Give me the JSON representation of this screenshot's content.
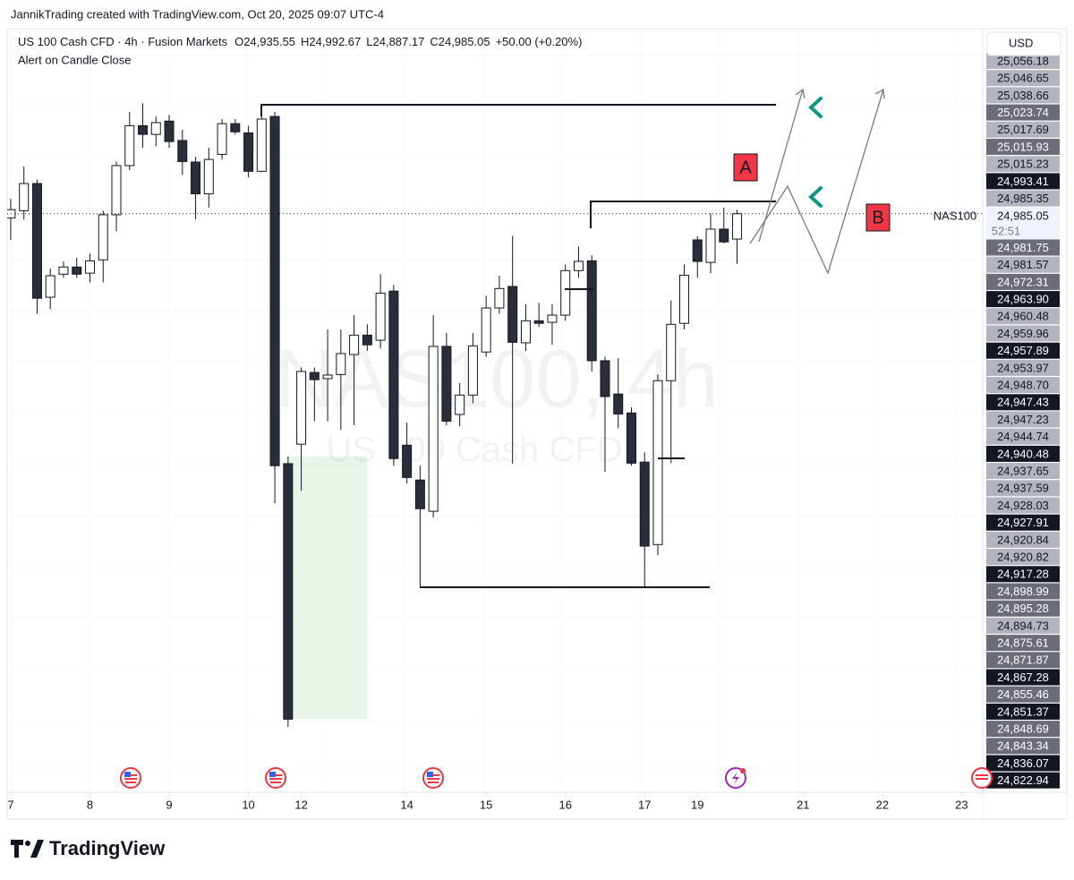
{
  "header": {
    "attribution": "JannikTrading created with TradingView.com, Oct 20, 2025 09:07 UTC-4",
    "symbol": "US 100 Cash CFD · 4h · Fusion Markets",
    "ohlc": [
      "O24,935.55",
      "H24,992.67",
      "L24,887.17",
      "C24,985.05",
      "+50.00 (+0.20%)"
    ],
    "alert": "Alert on Candle Close"
  },
  "chart_data": {
    "type": "candlestick",
    "watermark": "NAS100, 4h",
    "watermark_subtitle": "US 100 Cash CFD",
    "currency": "USD",
    "symbol_label": "NAS100",
    "last_price": "24,985.05",
    "countdown": "52:51",
    "annotations": [
      "A",
      "B"
    ],
    "x": [
      0,
      1,
      2,
      3,
      4,
      5,
      6,
      7,
      8,
      9,
      10,
      11,
      12,
      13,
      14,
      15,
      16,
      17,
      18,
      19,
      20,
      21,
      22,
      23,
      24,
      25,
      26,
      27,
      28,
      29,
      30,
      31,
      32,
      33,
      34,
      35,
      36,
      37,
      38,
      39,
      40,
      41,
      42,
      43,
      44,
      45,
      46,
      47,
      48,
      49,
      50,
      51,
      52,
      53,
      54,
      55
    ],
    "open": [
      24977,
      24991,
      25044,
      24822,
      24867,
      24881,
      24869,
      24895,
      24983,
      25079,
      25157,
      25140,
      25166,
      25128,
      25086,
      25024,
      25101,
      25161,
      25143,
      25068,
      25175,
      24497,
      24535,
      24675,
      24663,
      24671,
      24710,
      24748,
      24738,
      24834,
      24533,
      24465,
      24404,
      24726,
      24593,
      24631,
      24715,
      24801,
      24843,
      24733,
      24776,
      24773,
      24787,
      24874,
      24893,
      24698,
      24633,
      24596,
      24500,
      24339,
      24659,
      24771,
      24934,
      24890,
      24955,
      24935.55
    ],
    "high": [
      25014,
      25077,
      25052,
      24878,
      24892,
      24899,
      24907,
      24991,
      25087,
      25184,
      25201,
      25175,
      25178,
      25149,
      25096,
      25114,
      25170,
      25170,
      25157,
      25192,
      25184,
      24511,
      24685,
      24685,
      24759,
      24759,
      24787,
      24769,
      24867,
      24846,
      24577,
      24493,
      24787,
      24752,
      24654,
      24752,
      24825,
      24864,
      24942,
      24808,
      24811,
      24808,
      24886,
      24921,
      24904,
      24706,
      24703,
      24607,
      24519,
      24671,
      24816,
      24886,
      24941,
      24986,
      24997,
      24992.67
    ],
    "low": [
      24934,
      24974,
      24790,
      24799,
      24860,
      24860,
      24851,
      24851,
      24951,
      25070,
      25114,
      25117,
      25114,
      25061,
      24974,
      24997,
      25091,
      25140,
      25056,
      25066,
      24420,
      23983,
      24444,
      24580,
      24580,
      24563,
      24572,
      24717,
      24722,
      24493,
      24458,
      24255,
      24392,
      24572,
      24570,
      24615,
      24706,
      24790,
      24497,
      24717,
      24764,
      24729,
      24776,
      24860,
      24677,
      24481,
      24566,
      24493,
      24254,
      24318,
      24498,
      24759,
      24860,
      24869,
      24927,
      24887.17
    ],
    "close": [
      24993,
      25044,
      24820,
      24864,
      24881,
      24867,
      24893,
      24983,
      25079,
      25157,
      25140,
      25163,
      25126,
      25087,
      25024,
      25091,
      25161,
      25145,
      25068,
      25170,
      24493,
      23998,
      24677,
      24661,
      24670,
      24712,
      24748,
      24729,
      24830,
      24507,
      24470,
      24409,
      24726,
      24580,
      24631,
      24727,
      24801,
      24839,
      24734,
      24776,
      24771,
      24787,
      24874,
      24892,
      24698,
      24628,
      24594,
      24498,
      24336,
      24659,
      24769,
      24865,
      24892,
      24955,
      24930,
      24985.05
    ],
    "up_color": "#ffffff",
    "down_color": "#2a2e39",
    "border_color": "#131722",
    "xlim": [
      -0.81,
      73.6
    ],
    "xticks": [
      {
        "value": 0,
        "label": "7"
      },
      {
        "value": 6,
        "label": "8"
      },
      {
        "value": 12,
        "label": "9"
      },
      {
        "value": 18,
        "label": "10"
      },
      {
        "value": 22,
        "label": "12"
      },
      {
        "value": 30,
        "label": "14"
      },
      {
        "value": 36,
        "label": "15"
      },
      {
        "value": 42,
        "label": "16"
      },
      {
        "value": 48,
        "label": "17"
      },
      {
        "value": 52,
        "label": "19"
      },
      {
        "value": 60,
        "label": "21"
      },
      {
        "value": 66,
        "label": "22"
      },
      {
        "value": 72,
        "label": "23"
      }
    ],
    "ylim": [
      23850,
      25350
    ],
    "price_tags_upper": [
      {
        "label": "25,056.18",
        "color": "#b2b5be"
      },
      {
        "label": "25,046.65",
        "color": "#b2b5be"
      },
      {
        "label": "25,038.66",
        "color": "#b2b5be"
      },
      {
        "label": "25,023.74",
        "color": "#6a6d78"
      },
      {
        "label": "25,017.69",
        "color": "#b2b5be"
      },
      {
        "label": "25,015.93",
        "color": "#6a6d78"
      },
      {
        "label": "25,015.23",
        "color": "#b2b5be"
      },
      {
        "label": "24,993.41",
        "color": "#131722"
      },
      {
        "label": "24,985.35",
        "color": "#b2b5be"
      }
    ],
    "price_tags_lower": [
      {
        "label": "24,981.75",
        "color": "#6a6d78"
      },
      {
        "label": "24,981.57",
        "color": "#b2b5be"
      },
      {
        "label": "24,972.31",
        "color": "#6a6d78"
      },
      {
        "label": "24,963.90",
        "color": "#131722"
      },
      {
        "label": "24,960.48",
        "color": "#b2b5be"
      },
      {
        "label": "24,959.96",
        "color": "#b2b5be"
      },
      {
        "label": "24,957.89",
        "color": "#131722"
      },
      {
        "label": "24,953.97",
        "color": "#b2b5be"
      },
      {
        "label": "24,948.70",
        "color": "#b2b5be"
      },
      {
        "label": "24,947.43",
        "color": "#131722"
      },
      {
        "label": "24,947.23",
        "color": "#b2b5be"
      },
      {
        "label": "24,944.74",
        "color": "#b2b5be"
      },
      {
        "label": "24,940.48",
        "color": "#131722"
      },
      {
        "label": "24,937.65",
        "color": "#b2b5be"
      },
      {
        "label": "24,937.59",
        "color": "#b2b5be"
      },
      {
        "label": "24,928.03",
        "color": "#b2b5be"
      },
      {
        "label": "24,927.91",
        "color": "#131722"
      },
      {
        "label": "24,920.84",
        "color": "#b2b5be"
      },
      {
        "label": "24,920.82",
        "color": "#b2b5be"
      },
      {
        "label": "24,917.28",
        "color": "#131722"
      },
      {
        "label": "24,898.99",
        "color": "#6a6d78"
      },
      {
        "label": "24,895.28",
        "color": "#6a6d78"
      },
      {
        "label": "24,894.73",
        "color": "#b2b5be"
      },
      {
        "label": "24,875.61",
        "color": "#6a6d78"
      },
      {
        "label": "24,871.87",
        "color": "#6a6d78"
      },
      {
        "label": "24,867.28",
        "color": "#131722"
      },
      {
        "label": "24,855.46",
        "color": "#6a6d78"
      },
      {
        "label": "24,851.37",
        "color": "#131722"
      },
      {
        "label": "24,848.69",
        "color": "#6a6d78"
      },
      {
        "label": "24,843.34",
        "color": "#6a6d78"
      },
      {
        "label": "24,836.07",
        "color": "#131722"
      },
      {
        "label": "24,822.94",
        "color": "#131722"
      }
    ]
  },
  "footer": {
    "brand": "TradingView"
  }
}
